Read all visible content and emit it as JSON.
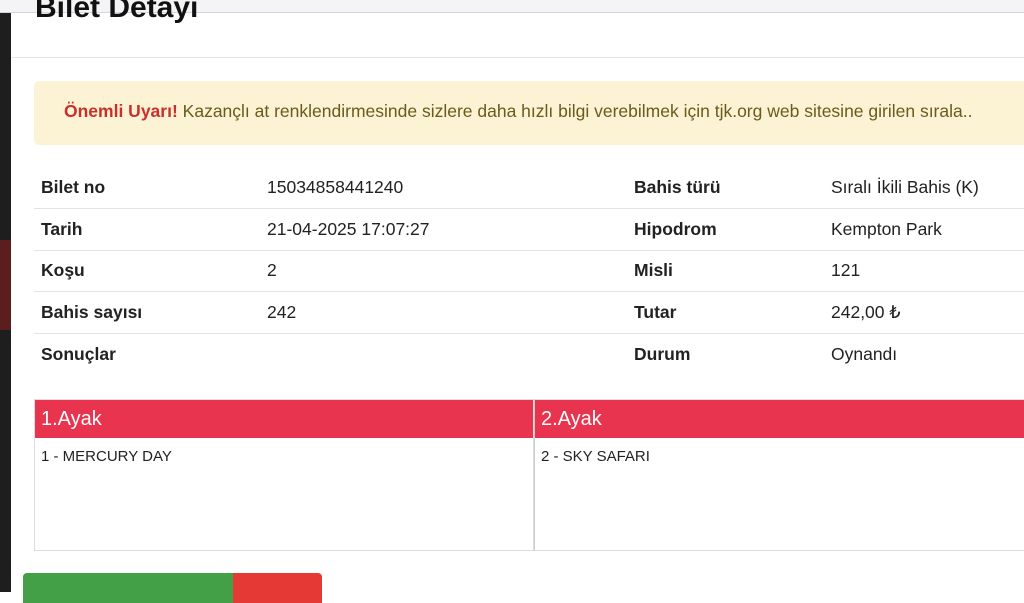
{
  "modal": {
    "title": "Bilet Detayı"
  },
  "alert": {
    "strong": "Önemli Uyarı!",
    "text": " Kazançlı at renklendirmesinde sizlere daha hızlı bilgi verebilmek için tjk.org web sitesine girilen sırala.."
  },
  "details": [
    {
      "k1": "Bilet no",
      "v1": "15034858441240",
      "k2": "Bahis türü",
      "v2": "Sıralı İkili Bahis (K)"
    },
    {
      "k1": "Tarih",
      "v1": "21-04-2025 17:07:27",
      "k2": "Hipodrom",
      "v2": "Kempton Park"
    },
    {
      "k1": "Koşu",
      "v1": "2",
      "k2": "Misli",
      "v2": "121"
    },
    {
      "k1": "Bahis sayısı",
      "v1": "242",
      "k2": "Tutar",
      "v2": "242,00 ₺"
    },
    {
      "k1": "Sonuçlar",
      "v1": "",
      "k2": "Durum",
      "v2": "Oynandı"
    }
  ],
  "legs": [
    {
      "title": "1.Ayak",
      "horse": "1 - MERCURY DAY"
    },
    {
      "title": "2.Ayak",
      "horse": "2 - SKY SAFARI"
    }
  ],
  "colors": {
    "leg_header": "#e8344f",
    "alert_bg": "#fcf3d4",
    "alert_strong": "#c9302c"
  }
}
